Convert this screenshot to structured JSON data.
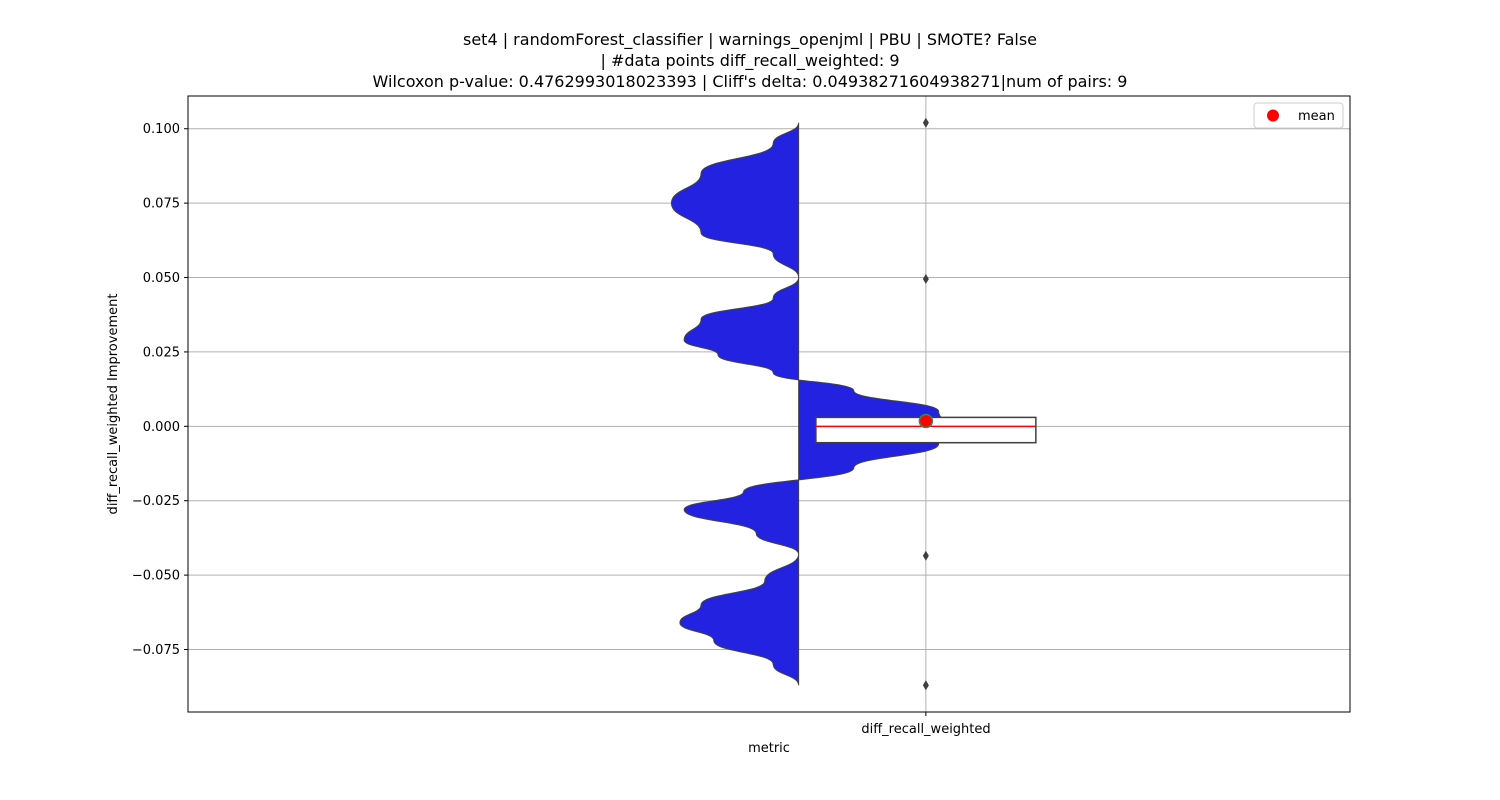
{
  "chart_data": {
    "type": "violin",
    "title_lines": [
      "set4 | randomForest_classifier | warnings_openjml | PBU | SMOTE? False",
      "| #data points diff_recall_weighted: 9",
      "Wilcoxon p-value: 0.4762993018023393 | Cliff's delta: 0.04938271604938271|num of pairs: 9"
    ],
    "xlabel": "metric",
    "ylabel": "diff_recall_weighted Improvement",
    "categories": [
      "diff_recall_weighted"
    ],
    "ylim": [
      -0.096,
      0.111
    ],
    "yticks": [
      -0.075,
      -0.05,
      -0.025,
      0.0,
      0.025,
      0.05,
      0.075,
      0.1
    ],
    "ytick_labels": [
      "−0.075",
      "−0.050",
      "−0.025",
      "0.000",
      "0.025",
      "0.050",
      "0.075",
      "0.100"
    ],
    "grid": true,
    "legend": {
      "position": "top-right",
      "entries": [
        {
          "label": "mean",
          "color": "#ff0000"
        }
      ]
    },
    "violin": {
      "color": "#2222e0",
      "extent": [
        -0.087,
        0.102
      ],
      "density_profile": [
        {
          "y": 0.102,
          "w": 0.3
        },
        {
          "y": 0.095,
          "w": 0.36
        },
        {
          "y": 0.085,
          "w": 0.53
        },
        {
          "y": 0.075,
          "w": 0.6
        },
        {
          "y": 0.065,
          "w": 0.53
        },
        {
          "y": 0.058,
          "w": 0.36
        },
        {
          "y": 0.05,
          "w": 0.3
        },
        {
          "y": 0.043,
          "w": 0.36
        },
        {
          "y": 0.036,
          "w": 0.53
        },
        {
          "y": 0.029,
          "w": 0.57
        },
        {
          "y": 0.024,
          "w": 0.49
        },
        {
          "y": 0.018,
          "w": 0.36
        },
        {
          "y": 0.012,
          "w": 0.17
        },
        {
          "y": 0.005,
          "w": -0.03
        },
        {
          "y": 0.0,
          "w": -0.05
        },
        {
          "y": -0.006,
          "w": -0.03
        },
        {
          "y": -0.014,
          "w": 0.17
        },
        {
          "y": -0.022,
          "w": 0.43
        },
        {
          "y": -0.028,
          "w": 0.57
        },
        {
          "y": -0.036,
          "w": 0.4
        },
        {
          "y": -0.043,
          "w": 0.3
        },
        {
          "y": -0.052,
          "w": 0.38
        },
        {
          "y": -0.06,
          "w": 0.53
        },
        {
          "y": -0.066,
          "w": 0.58
        },
        {
          "y": -0.072,
          "w": 0.5
        },
        {
          "y": -0.08,
          "w": 0.36
        },
        {
          "y": -0.087,
          "w": 0.3
        }
      ]
    },
    "box": {
      "q1": -0.0055,
      "median": 0.0,
      "q3": 0.003,
      "mean": 0.0018,
      "median_color": "#ff0000",
      "mean_color": "#ff0000",
      "fliers": [
        0.102,
        0.0495,
        -0.0435,
        -0.087
      ]
    }
  }
}
